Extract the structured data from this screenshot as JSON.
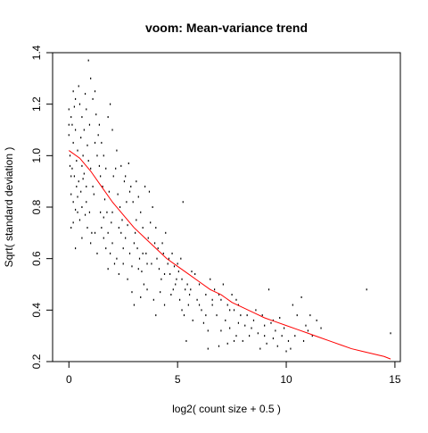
{
  "chart_data": {
    "type": "scatter",
    "title": "voom: Mean-variance trend",
    "xlabel": "log2( count size + 0.5 )",
    "ylabel": "Sqrt( standard deviation )",
    "xlim": [
      -0.75,
      15.25
    ],
    "ylim": [
      0.2,
      1.4
    ],
    "x_ticks": [
      0,
      5,
      10,
      15
    ],
    "x_tick_labels": [
      "0",
      "5",
      "10",
      "15"
    ],
    "y_ticks": [
      0.2,
      0.4,
      0.6,
      0.8,
      1.0,
      1.2,
      1.4
    ],
    "y_tick_labels": [
      "0.2",
      "0.4",
      "0.6",
      "0.8",
      "1.0",
      "1.2",
      "1.4"
    ],
    "grid": false,
    "colors": {
      "points": "#000000",
      "trend": "#ff0000",
      "axes": "#000000"
    },
    "trend_line": {
      "x": [
        0.0,
        0.5,
        1.0,
        1.5,
        2.0,
        2.5,
        3.0,
        3.5,
        4.0,
        4.5,
        5.0,
        5.5,
        6.0,
        6.5,
        7.0,
        7.5,
        8.0,
        8.5,
        9.0,
        9.5,
        10.0,
        10.5,
        11.0,
        11.5,
        12.0,
        12.5,
        13.0,
        13.5,
        14.0,
        14.5,
        14.8
      ],
      "y": [
        1.02,
        0.99,
        0.94,
        0.88,
        0.82,
        0.77,
        0.72,
        0.68,
        0.64,
        0.6,
        0.57,
        0.54,
        0.51,
        0.48,
        0.46,
        0.43,
        0.41,
        0.39,
        0.37,
        0.355,
        0.34,
        0.325,
        0.31,
        0.295,
        0.28,
        0.265,
        0.25,
        0.24,
        0.23,
        0.22,
        0.21
      ]
    },
    "points": [
      [
        0.0,
        1.18
      ],
      [
        0.1,
        1.15
      ],
      [
        0.2,
        1.25
      ],
      [
        0.3,
        1.22
      ],
      [
        0.15,
        1.12
      ],
      [
        0.3,
        1.1
      ],
      [
        0.5,
        1.2
      ],
      [
        0.6,
        1.15
      ],
      [
        0.7,
        1.1
      ],
      [
        0.8,
        1.18
      ],
      [
        0.0,
        1.08
      ],
      [
        0.2,
        1.05
      ],
      [
        0.4,
        1.02
      ],
      [
        0.55,
        1.07
      ],
      [
        0.65,
        1.0
      ],
      [
        0.85,
        1.04
      ],
      [
        0.95,
        1.12
      ],
      [
        1.1,
        1.22
      ],
      [
        1.2,
        1.25
      ],
      [
        0.9,
        1.37
      ],
      [
        0.05,
        1.0
      ],
      [
        0.15,
        0.95
      ],
      [
        0.25,
        0.92
      ],
      [
        0.35,
        0.88
      ],
      [
        0.45,
        0.9
      ],
      [
        0.55,
        0.86
      ],
      [
        0.7,
        0.93
      ],
      [
        0.8,
        0.82
      ],
      [
        0.9,
        0.98
      ],
      [
        1.0,
        0.95
      ],
      [
        0.1,
        0.85
      ],
      [
        0.2,
        0.82
      ],
      [
        0.3,
        0.79
      ],
      [
        0.4,
        0.78
      ],
      [
        0.5,
        0.75
      ],
      [
        0.6,
        0.8
      ],
      [
        0.75,
        0.77
      ],
      [
        0.85,
        0.72
      ],
      [
        0.95,
        0.78
      ],
      [
        1.05,
        0.7
      ],
      [
        0.1,
        0.72
      ],
      [
        0.2,
        0.74
      ],
      [
        0.3,
        0.64
      ],
      [
        0.6,
        0.68
      ],
      [
        1.0,
        0.66
      ],
      [
        1.2,
        0.7
      ],
      [
        1.3,
        0.62
      ],
      [
        1.1,
        0.88
      ],
      [
        1.2,
        1.05
      ],
      [
        1.3,
        1.0
      ],
      [
        1.4,
        1.12
      ],
      [
        1.5,
        1.05
      ],
      [
        1.6,
        1.0
      ],
      [
        1.7,
        0.95
      ],
      [
        1.8,
        1.15
      ],
      [
        1.9,
        1.2
      ],
      [
        2.0,
        1.1
      ],
      [
        1.45,
        0.92
      ],
      [
        1.55,
        0.88
      ],
      [
        1.65,
        0.83
      ],
      [
        1.75,
        0.78
      ],
      [
        1.85,
        0.86
      ],
      [
        1.95,
        0.74
      ],
      [
        2.05,
        0.92
      ],
      [
        2.15,
        0.95
      ],
      [
        2.25,
        0.85
      ],
      [
        2.35,
        0.8
      ],
      [
        2.45,
        0.75
      ],
      [
        2.55,
        0.9
      ],
      [
        2.65,
        0.82
      ],
      [
        1.5,
        0.72
      ],
      [
        1.6,
        0.68
      ],
      [
        1.7,
        0.64
      ],
      [
        1.8,
        0.7
      ],
      [
        1.9,
        0.62
      ],
      [
        2.0,
        0.66
      ],
      [
        2.1,
        0.58
      ],
      [
        2.2,
        0.6
      ],
      [
        2.3,
        0.54
      ],
      [
        2.4,
        0.7
      ],
      [
        2.5,
        0.64
      ],
      [
        2.6,
        0.68
      ],
      [
        2.7,
        0.73
      ],
      [
        2.8,
        0.62
      ],
      [
        2.9,
        0.57
      ],
      [
        3.0,
        0.66
      ],
      [
        3.1,
        0.75
      ],
      [
        3.2,
        0.84
      ],
      [
        3.3,
        0.78
      ],
      [
        3.4,
        0.72
      ],
      [
        2.75,
        0.97
      ],
      [
        2.85,
        0.88
      ],
      [
        2.95,
        0.82
      ],
      [
        3.05,
        0.7
      ],
      [
        3.15,
        0.64
      ],
      [
        3.25,
        0.6
      ],
      [
        3.35,
        0.55
      ],
      [
        3.45,
        0.5
      ],
      [
        3.55,
        0.62
      ],
      [
        3.65,
        0.68
      ],
      [
        3.75,
        0.74
      ],
      [
        3.85,
        0.8
      ],
      [
        3.95,
        0.66
      ],
      [
        4.05,
        0.6
      ],
      [
        4.15,
        0.56
      ],
      [
        4.25,
        0.52
      ],
      [
        4.35,
        0.62
      ],
      [
        4.45,
        0.7
      ],
      [
        4.55,
        0.58
      ],
      [
        4.65,
        0.54
      ],
      [
        2.9,
        0.47
      ],
      [
        3.0,
        0.42
      ],
      [
        3.3,
        0.45
      ],
      [
        3.6,
        0.48
      ],
      [
        3.9,
        0.44
      ],
      [
        4.0,
        0.38
      ],
      [
        4.2,
        0.47
      ],
      [
        4.4,
        0.42
      ],
      [
        4.7,
        0.46
      ],
      [
        4.9,
        0.5
      ],
      [
        4.75,
        0.62
      ],
      [
        4.85,
        0.57
      ],
      [
        4.95,
        0.52
      ],
      [
        5.05,
        0.55
      ],
      [
        5.15,
        0.6
      ],
      [
        5.25,
        0.82
      ],
      [
        5.35,
        0.48
      ],
      [
        5.45,
        0.5
      ],
      [
        5.55,
        0.46
      ],
      [
        5.65,
        0.55
      ],
      [
        5.1,
        0.44
      ],
      [
        5.2,
        0.4
      ],
      [
        5.3,
        0.38
      ],
      [
        5.5,
        0.42
      ],
      [
        5.7,
        0.36
      ],
      [
        5.9,
        0.44
      ],
      [
        6.0,
        0.5
      ],
      [
        6.1,
        0.4
      ],
      [
        6.3,
        0.46
      ],
      [
        6.5,
        0.52
      ],
      [
        5.4,
        0.28
      ],
      [
        6.2,
        0.35
      ],
      [
        6.4,
        0.32
      ],
      [
        6.6,
        0.42
      ],
      [
        6.8,
        0.38
      ],
      [
        7.0,
        0.44
      ],
      [
        7.2,
        0.36
      ],
      [
        7.4,
        0.33
      ],
      [
        7.6,
        0.4
      ],
      [
        7.8,
        0.35
      ],
      [
        6.7,
        0.48
      ],
      [
        6.9,
        0.46
      ],
      [
        7.1,
        0.5
      ],
      [
        7.3,
        0.42
      ],
      [
        7.5,
        0.46
      ],
      [
        7.7,
        0.44
      ],
      [
        7.9,
        0.38
      ],
      [
        8.1,
        0.34
      ],
      [
        8.3,
        0.3
      ],
      [
        8.5,
        0.36
      ],
      [
        6.9,
        0.26
      ],
      [
        7.3,
        0.27
      ],
      [
        7.6,
        0.28
      ],
      [
        8.0,
        0.28
      ],
      [
        8.4,
        0.33
      ],
      [
        8.7,
        0.31
      ],
      [
        8.9,
        0.38
      ],
      [
        9.1,
        0.27
      ],
      [
        9.3,
        0.35
      ],
      [
        9.5,
        0.32
      ],
      [
        9.7,
        0.37
      ],
      [
        9.9,
        0.33
      ],
      [
        10.1,
        0.28
      ],
      [
        10.3,
        0.42
      ],
      [
        10.5,
        0.38
      ],
      [
        10.7,
        0.45
      ],
      [
        10.9,
        0.34
      ],
      [
        11.1,
        0.38
      ],
      [
        11.4,
        0.36
      ],
      [
        9.2,
        0.48
      ],
      [
        9.0,
        0.3
      ],
      [
        9.6,
        0.26
      ],
      [
        10.2,
        0.25
      ],
      [
        10.0,
        0.24
      ],
      [
        9.4,
        0.29
      ],
      [
        11.0,
        0.32
      ],
      [
        11.6,
        0.33
      ],
      [
        13.7,
        0.48
      ],
      [
        14.8,
        0.31
      ],
      [
        3.7,
        0.86
      ],
      [
        1.0,
        1.3
      ],
      [
        0.45,
        1.27
      ],
      [
        0.75,
        1.24
      ],
      [
        0.25,
        1.19
      ],
      [
        1.25,
        1.16
      ],
      [
        1.35,
        1.08
      ],
      [
        0.35,
        0.98
      ],
      [
        0.65,
        0.91
      ],
      [
        1.15,
        0.85
      ],
      [
        1.45,
        0.78
      ],
      [
        2.2,
        1.02
      ],
      [
        2.4,
        0.96
      ],
      [
        2.6,
        0.92
      ],
      [
        2.8,
        0.86
      ],
      [
        3.1,
        0.9
      ],
      [
        3.5,
        0.88
      ],
      [
        3.8,
        0.58
      ],
      [
        4.1,
        0.64
      ],
      [
        4.3,
        0.66
      ],
      [
        4.6,
        0.6
      ],
      [
        0.0,
        1.12
      ],
      [
        0.05,
        0.96
      ],
      [
        0.1,
        0.92
      ],
      [
        0.4,
        0.84
      ],
      [
        0.6,
        0.96
      ],
      [
        0.8,
        0.88
      ],
      [
        1.4,
        0.96
      ],
      [
        1.6,
        0.76
      ],
      [
        1.8,
        0.56
      ],
      [
        2.0,
        0.78
      ],
      [
        2.3,
        0.72
      ],
      [
        2.5,
        0.58
      ],
      [
        2.7,
        0.52
      ],
      [
        3.2,
        0.56
      ],
      [
        3.4,
        0.62
      ],
      [
        3.6,
        0.58
      ],
      [
        4.0,
        0.72
      ],
      [
        4.4,
        0.54
      ],
      [
        4.8,
        0.48
      ],
      [
        5.0,
        0.58
      ],
      [
        5.2,
        0.52
      ],
      [
        5.6,
        0.48
      ],
      [
        5.8,
        0.54
      ],
      [
        6.0,
        0.42
      ],
      [
        6.3,
        0.38
      ],
      [
        6.6,
        0.44
      ],
      [
        7.0,
        0.32
      ],
      [
        7.4,
        0.4
      ],
      [
        7.8,
        0.42
      ],
      [
        8.2,
        0.38
      ],
      [
        8.6,
        0.4
      ],
      [
        9.0,
        0.34
      ],
      [
        9.4,
        0.36
      ],
      [
        9.8,
        0.3
      ],
      [
        10.4,
        0.3
      ],
      [
        10.8,
        0.28
      ],
      [
        11.2,
        0.3
      ],
      [
        8.8,
        0.25
      ],
      [
        7.7,
        0.3
      ],
      [
        6.4,
        0.25
      ]
    ]
  }
}
